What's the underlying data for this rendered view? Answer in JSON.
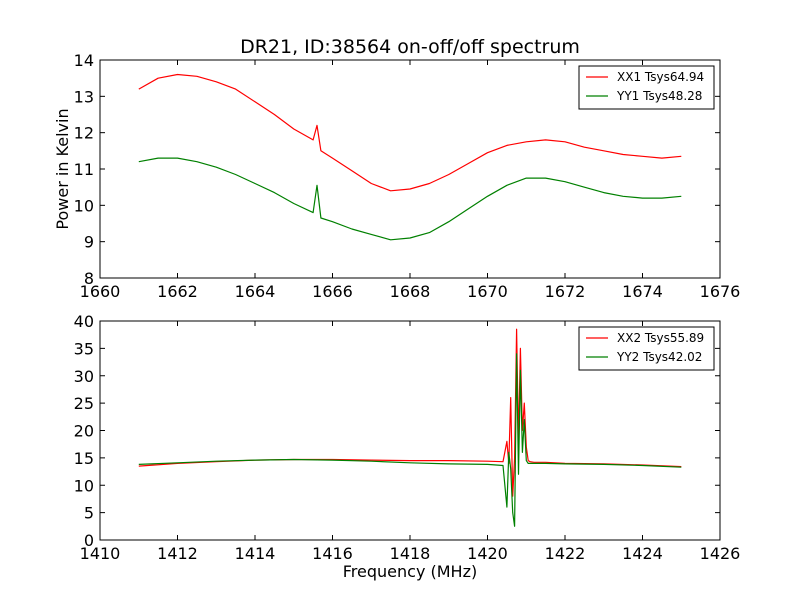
{
  "chart_data": [
    {
      "type": "line",
      "title": "DR21, ID:38564 on-off/off spectrum",
      "xlabel": "",
      "ylabel": "Power in Kelvin",
      "xlim": [
        1660,
        1676
      ],
      "ylim": [
        8,
        14
      ],
      "xticks": [
        1660,
        1662,
        1664,
        1666,
        1668,
        1670,
        1672,
        1674,
        1676
      ],
      "yticks": [
        8,
        9,
        10,
        11,
        12,
        13,
        14
      ],
      "legend_position": "top-right",
      "series": [
        {
          "name": "XX1 Tsys64.94",
          "color": "#ff0000",
          "x": [
            1661.0,
            1661.5,
            1662.0,
            1662.5,
            1663.0,
            1663.5,
            1664.0,
            1664.5,
            1665.0,
            1665.5,
            1665.6,
            1665.7,
            1666.0,
            1666.5,
            1667.0,
            1667.5,
            1668.0,
            1668.5,
            1669.0,
            1669.5,
            1670.0,
            1670.5,
            1671.0,
            1671.5,
            1672.0,
            1672.5,
            1673.0,
            1673.5,
            1674.0,
            1674.5,
            1675.0
          ],
          "y": [
            13.2,
            13.5,
            13.6,
            13.55,
            13.4,
            13.2,
            12.85,
            12.5,
            12.1,
            11.8,
            12.2,
            11.5,
            11.3,
            10.95,
            10.6,
            10.4,
            10.45,
            10.6,
            10.85,
            11.15,
            11.45,
            11.65,
            11.75,
            11.8,
            11.75,
            11.6,
            11.5,
            11.4,
            11.35,
            11.3,
            11.35
          ]
        },
        {
          "name": "YY1 Tsys48.28",
          "color": "#008000",
          "x": [
            1661.0,
            1661.5,
            1662.0,
            1662.5,
            1663.0,
            1663.5,
            1664.0,
            1664.5,
            1665.0,
            1665.5,
            1665.6,
            1665.7,
            1666.0,
            1666.5,
            1667.0,
            1667.5,
            1668.0,
            1668.5,
            1669.0,
            1669.5,
            1670.0,
            1670.5,
            1671.0,
            1671.5,
            1672.0,
            1672.5,
            1673.0,
            1673.5,
            1674.0,
            1674.5,
            1675.0
          ],
          "y": [
            11.2,
            11.3,
            11.3,
            11.2,
            11.05,
            10.85,
            10.6,
            10.35,
            10.05,
            9.8,
            10.55,
            9.65,
            9.55,
            9.35,
            9.2,
            9.05,
            9.1,
            9.25,
            9.55,
            9.9,
            10.25,
            10.55,
            10.75,
            10.75,
            10.65,
            10.5,
            10.35,
            10.25,
            10.2,
            10.2,
            10.25
          ]
        }
      ]
    },
    {
      "type": "line",
      "title": "",
      "xlabel": "Frequency (MHz)",
      "ylabel": "",
      "xlim": [
        1410,
        1426
      ],
      "ylim": [
        0,
        40
      ],
      "xticks": [
        1410,
        1412,
        1414,
        1416,
        1418,
        1420,
        1422,
        1424,
        1426
      ],
      "yticks": [
        0,
        5,
        10,
        15,
        20,
        25,
        30,
        35,
        40
      ],
      "legend_position": "top-right",
      "series": [
        {
          "name": "XX2 Tsys55.89",
          "color": "#ff0000",
          "x": [
            1411.0,
            1412.0,
            1413.0,
            1414.0,
            1415.0,
            1416.0,
            1417.0,
            1418.0,
            1419.0,
            1420.0,
            1420.4,
            1420.5,
            1420.55,
            1420.6,
            1420.65,
            1420.7,
            1420.75,
            1420.8,
            1420.85,
            1420.9,
            1420.95,
            1421.0,
            1421.05,
            1421.1,
            1421.2,
            1421.5,
            1422.0,
            1423.0,
            1424.0,
            1425.0
          ],
          "y": [
            13.5,
            14.0,
            14.3,
            14.6,
            14.7,
            14.7,
            14.6,
            14.5,
            14.5,
            14.4,
            14.3,
            18.0,
            14.0,
            26.0,
            8.0,
            15.0,
            38.5,
            18.0,
            35.0,
            20.0,
            25.0,
            17.0,
            14.5,
            14.3,
            14.2,
            14.2,
            14.0,
            13.9,
            13.7,
            13.4
          ]
        },
        {
          "name": "YY2 Tsys42.02",
          "color": "#008000",
          "x": [
            1411.0,
            1412.0,
            1413.0,
            1414.0,
            1415.0,
            1416.0,
            1417.0,
            1418.0,
            1419.0,
            1420.0,
            1420.4,
            1420.5,
            1420.55,
            1420.6,
            1420.65,
            1420.7,
            1420.75,
            1420.8,
            1420.85,
            1420.9,
            1420.95,
            1421.0,
            1421.05,
            1421.1,
            1421.2,
            1421.5,
            1422.0,
            1423.0,
            1424.0,
            1425.0
          ],
          "y": [
            13.8,
            14.1,
            14.4,
            14.6,
            14.7,
            14.6,
            14.4,
            14.1,
            13.9,
            13.8,
            13.6,
            6.0,
            16.0,
            13.0,
            5.0,
            2.5,
            34.0,
            12.0,
            31.0,
            16.0,
            22.0,
            14.5,
            14.0,
            14.0,
            14.0,
            14.0,
            13.9,
            13.8,
            13.6,
            13.3
          ]
        }
      ]
    }
  ]
}
